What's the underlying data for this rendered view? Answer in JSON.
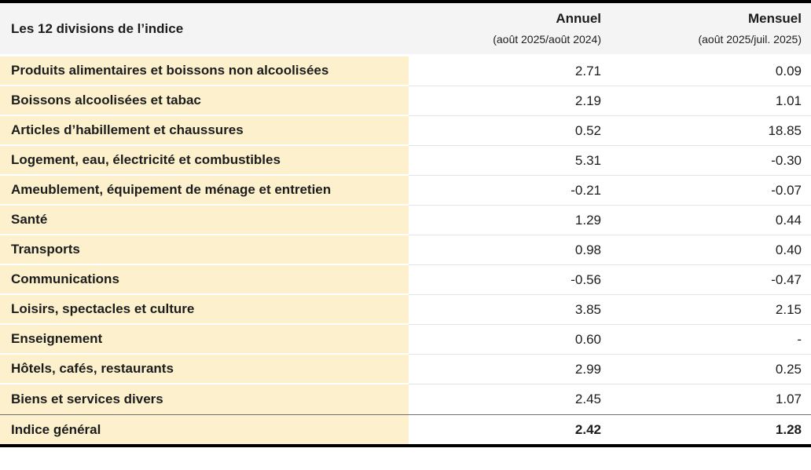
{
  "table": {
    "header": {
      "col1": "Les 12 divisions de l’indice",
      "annuel_label": "Annuel",
      "annuel_sub": "(août 2025/août 2024)",
      "mensuel_label": "Mensuel",
      "mensuel_sub": "(août 2025/juil. 2025)"
    },
    "rows": [
      {
        "label": "Produits alimentaires et boissons non alcoolisées",
        "annuel": "2.71",
        "mensuel": "0.09"
      },
      {
        "label": "Boissons alcoolisées et tabac",
        "annuel": "2.19",
        "mensuel": "1.01"
      },
      {
        "label": "Articles d’habillement et chaussures",
        "annuel": "0.52",
        "mensuel": "18.85"
      },
      {
        "label": "Logement, eau, électricité et combustibles",
        "annuel": "5.31",
        "mensuel": "-0.30"
      },
      {
        "label": "Ameublement, équipement de ménage et entretien",
        "annuel": "-0.21",
        "mensuel": "-0.07"
      },
      {
        "label": "Santé",
        "annuel": "1.29",
        "mensuel": "0.44"
      },
      {
        "label": "Transports",
        "annuel": "0.98",
        "mensuel": "0.40"
      },
      {
        "label": "Communications",
        "annuel": "-0.56",
        "mensuel": "-0.47"
      },
      {
        "label": "Loisirs, spectacles et culture",
        "annuel": "3.85",
        "mensuel": "2.15"
      },
      {
        "label": "Enseignement",
        "annuel": "0.60",
        "mensuel": "-"
      },
      {
        "label": "Hôtels, cafés, restaurants",
        "annuel": "2.99",
        "mensuel": "0.25"
      },
      {
        "label": "Biens et services divers",
        "annuel": "2.45",
        "mensuel": "1.07"
      }
    ],
    "footer": {
      "label": "Indice général",
      "annuel": "2.42",
      "mensuel": "1.28"
    }
  },
  "chart_data": {
    "type": "table",
    "title": "Les 12 divisions de l’indice",
    "columns": [
      "Les 12 divisions de l’indice",
      "Annuel (août 2025/août 2024)",
      "Mensuel (août 2025/juil. 2025)"
    ],
    "categories": [
      "Produits alimentaires et boissons non alcoolisées",
      "Boissons alcoolisées et tabac",
      "Articles d’habillement et chaussures",
      "Logement, eau, électricité et combustibles",
      "Ameublement, équipement de ménage et entretien",
      "Santé",
      "Transports",
      "Communications",
      "Loisirs, spectacles et culture",
      "Enseignement",
      "Hôtels, cafés, restaurants",
      "Biens et services divers"
    ],
    "series": [
      {
        "name": "Annuel (août 2025/août 2024)",
        "values": [
          2.71,
          2.19,
          0.52,
          5.31,
          -0.21,
          1.29,
          0.98,
          -0.56,
          3.85,
          0.6,
          2.99,
          2.45
        ]
      },
      {
        "name": "Mensuel (août 2025/juil. 2025)",
        "values": [
          0.09,
          1.01,
          18.85,
          -0.3,
          -0.07,
          0.44,
          0.4,
          -0.47,
          2.15,
          null,
          0.25,
          1.07
        ]
      }
    ],
    "footer": {
      "label": "Indice général",
      "annuel": 2.42,
      "mensuel": 1.28
    }
  },
  "colors": {
    "row_label_bg": "#fcf1cc",
    "header_bg": "#f4f4f4",
    "border": "#000000",
    "separator": "#e4e4e4",
    "total_separator": "#6f6f6f",
    "text": "#1c1c1c"
  }
}
